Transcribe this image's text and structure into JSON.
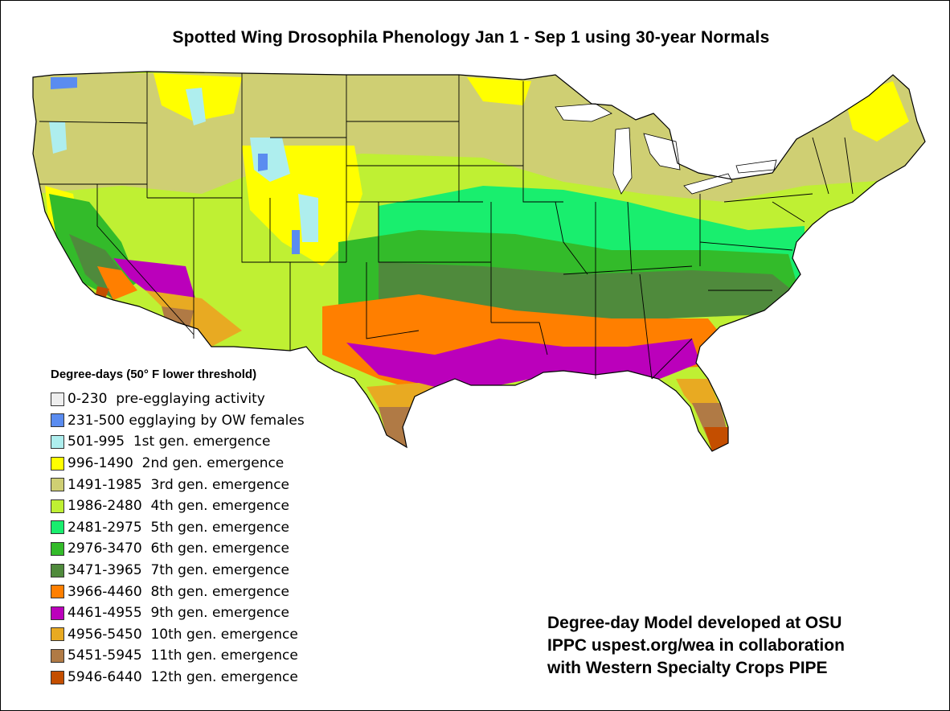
{
  "title": "Spotted Wing Drosophila Phenology Jan 1 - Sep 1 using 30-year Normals",
  "legend": {
    "title": "Degree-days (50° F lower threshold)",
    "items": [
      {
        "range": "0-230",
        "desc": "pre-egglaying activity",
        "color": "#eeeeee"
      },
      {
        "range": "231-500",
        "desc": "egglaying by OW females",
        "color": "#5a8cf0"
      },
      {
        "range": "501-995",
        "desc": "1st gen. emergence",
        "color": "#aeeeee"
      },
      {
        "range": "996-1490",
        "desc": "2nd gen. emergence",
        "color": "#ffff00"
      },
      {
        "range": "1491-1985",
        "desc": "3rd gen. emergence",
        "color": "#cfcf73"
      },
      {
        "range": "1986-2480",
        "desc": "4th gen. emergence",
        "color": "#bff033"
      },
      {
        "range": "2481-2975",
        "desc": "5th gen. emergence",
        "color": "#19ee6e"
      },
      {
        "range": "2976-3470",
        "desc": "6th gen. emergence",
        "color": "#33bb2a"
      },
      {
        "range": "3471-3965",
        "desc": "7th gen. emergence",
        "color": "#4f8a3c"
      },
      {
        "range": "3966-4460",
        "desc": "8th gen. emergence",
        "color": "#ff7f00"
      },
      {
        "range": "4461-4955",
        "desc": "9th gen. emergence",
        "color": "#bb00bb"
      },
      {
        "range": "4956-5450",
        "desc": "10th gen. emergence",
        "color": "#e8aa22"
      },
      {
        "range": "5451-5945",
        "desc": "11th gen. emergence",
        "color": "#b07a45"
      },
      {
        "range": "5946-6440",
        "desc": "12th gen. emergence",
        "color": "#c44e00"
      }
    ]
  },
  "credit": {
    "line1": "Degree-day Model developed at OSU",
    "line2": "IPPC uspest.org/wea in collaboration",
    "line3": "with Western Specialty Crops PIPE"
  }
}
